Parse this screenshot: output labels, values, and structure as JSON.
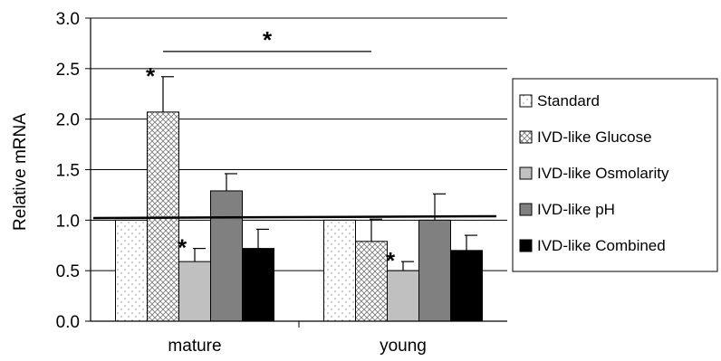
{
  "chart_data": {
    "type": "bar",
    "ylabel": "Relative mRNA",
    "ylim": [
      0,
      3.0
    ],
    "yticks": [
      "0.0",
      "0.5",
      "1.0",
      "1.5",
      "2.0",
      "2.5",
      "3.0"
    ],
    "grid": true,
    "legend_position": "right",
    "categories": [
      "mature",
      "young"
    ],
    "series": [
      {
        "name": "Standard",
        "values": [
          1.0,
          1.0
        ],
        "errors": [
          0,
          0
        ],
        "color": "#ffffff",
        "pattern": "dots",
        "significant": [
          false,
          false
        ]
      },
      {
        "name": "IVD-like Glucose",
        "values": [
          2.07,
          0.79
        ],
        "errors": [
          0.35,
          0.22
        ],
        "color": "#ffffff",
        "pattern": "crosshatch",
        "significant": [
          true,
          false
        ]
      },
      {
        "name": "IVD-like Osmolarity",
        "values": [
          0.59,
          0.5
        ],
        "errors": [
          0.13,
          0.09
        ],
        "color": "#c0c0c0",
        "pattern": "solid",
        "significant": [
          true,
          true
        ]
      },
      {
        "name": "IVD-like pH",
        "values": [
          1.29,
          1.0
        ],
        "errors": [
          0.17,
          0.26
        ],
        "color": "#808080",
        "pattern": "solid",
        "significant": [
          false,
          false
        ]
      },
      {
        "name": "IVD-like Combined",
        "values": [
          0.72,
          0.7
        ],
        "errors": [
          0.19,
          0.15
        ],
        "color": "#000000",
        "pattern": "solid",
        "significant": [
          false,
          false
        ]
      }
    ],
    "reference_line": 1.03,
    "bracket": {
      "from_series": 1,
      "from_category": 0,
      "to_category": 1,
      "label": "*"
    }
  }
}
